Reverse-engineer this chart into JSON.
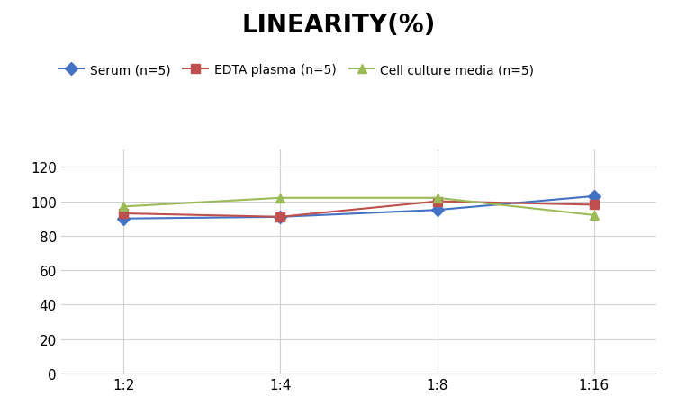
{
  "title": "LINEARITY(%)",
  "title_fontsize": 20,
  "title_fontweight": "bold",
  "x_labels": [
    "1:2",
    "1:4",
    "1:8",
    "1:16"
  ],
  "x_positions": [
    0,
    1,
    2,
    3
  ],
  "series": [
    {
      "label": "Serum (n=5)",
      "values": [
        90,
        91,
        95,
        103
      ],
      "color": "#4472C4",
      "marker": "D",
      "linewidth": 1.5
    },
    {
      "label": "EDTA plasma (n=5)",
      "values": [
        93,
        91,
        100,
        98
      ],
      "color": "#C0504D",
      "marker": "s",
      "linewidth": 1.5
    },
    {
      "label": "Cell culture media (n=5)",
      "values": [
        97,
        102,
        102,
        92
      ],
      "color": "#9BBB59",
      "marker": "^",
      "linewidth": 1.5
    }
  ],
  "ylim": [
    0,
    130
  ],
  "yticks": [
    0,
    20,
    40,
    60,
    80,
    100,
    120
  ],
  "grid_color": "#D0D0D0",
  "background_color": "#FFFFFF",
  "legend_fontsize": 10,
  "tick_fontsize": 11,
  "marker_size": 7
}
